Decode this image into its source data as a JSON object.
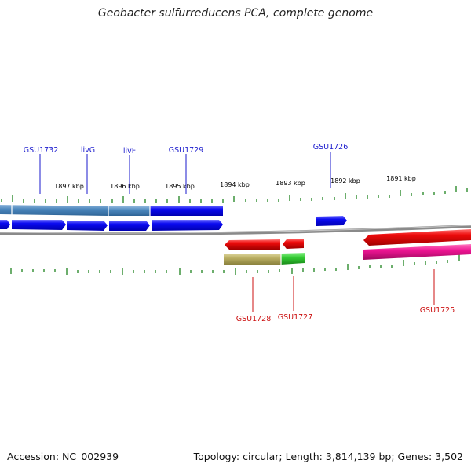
{
  "title": "Geobacter sulfurreducens PCA, complete genome",
  "footer": {
    "accession": "Accession: NC_002939",
    "summary": "Topology: circular; Length: 3,814,139 bp; Genes: 3,502"
  },
  "colors": {
    "backbone": "#8a8a8a",
    "tick": "#2e8b2e",
    "forward_label": "#1a1acd",
    "reverse_label": "#cc1111",
    "forward_gene": "#0a0af0",
    "forward_operon": "#4a86bc",
    "reverse_gene": "#ee0b0b",
    "reverse_operon_olive": "#b8ad60",
    "reverse_operon_green": "#33cc33",
    "reverse_operon_pink": "#ee1493"
  },
  "scale": {
    "unit": "kbp",
    "ticks": [
      {
        "label": "1897 kbp"
      },
      {
        "label": "1896 kbp"
      },
      {
        "label": "1895 kbp"
      },
      {
        "label": "1894 kbp"
      },
      {
        "label": "1893 kbp"
      },
      {
        "label": "1892 kbp"
      },
      {
        "label": "1891 kbp"
      }
    ]
  },
  "genes": {
    "forward": [
      "GSU1732",
      "livG",
      "livF",
      "GSU1729",
      "GSU1726"
    ],
    "reverse": [
      "GSU1728",
      "GSU1727",
      "GSU1725"
    ]
  }
}
